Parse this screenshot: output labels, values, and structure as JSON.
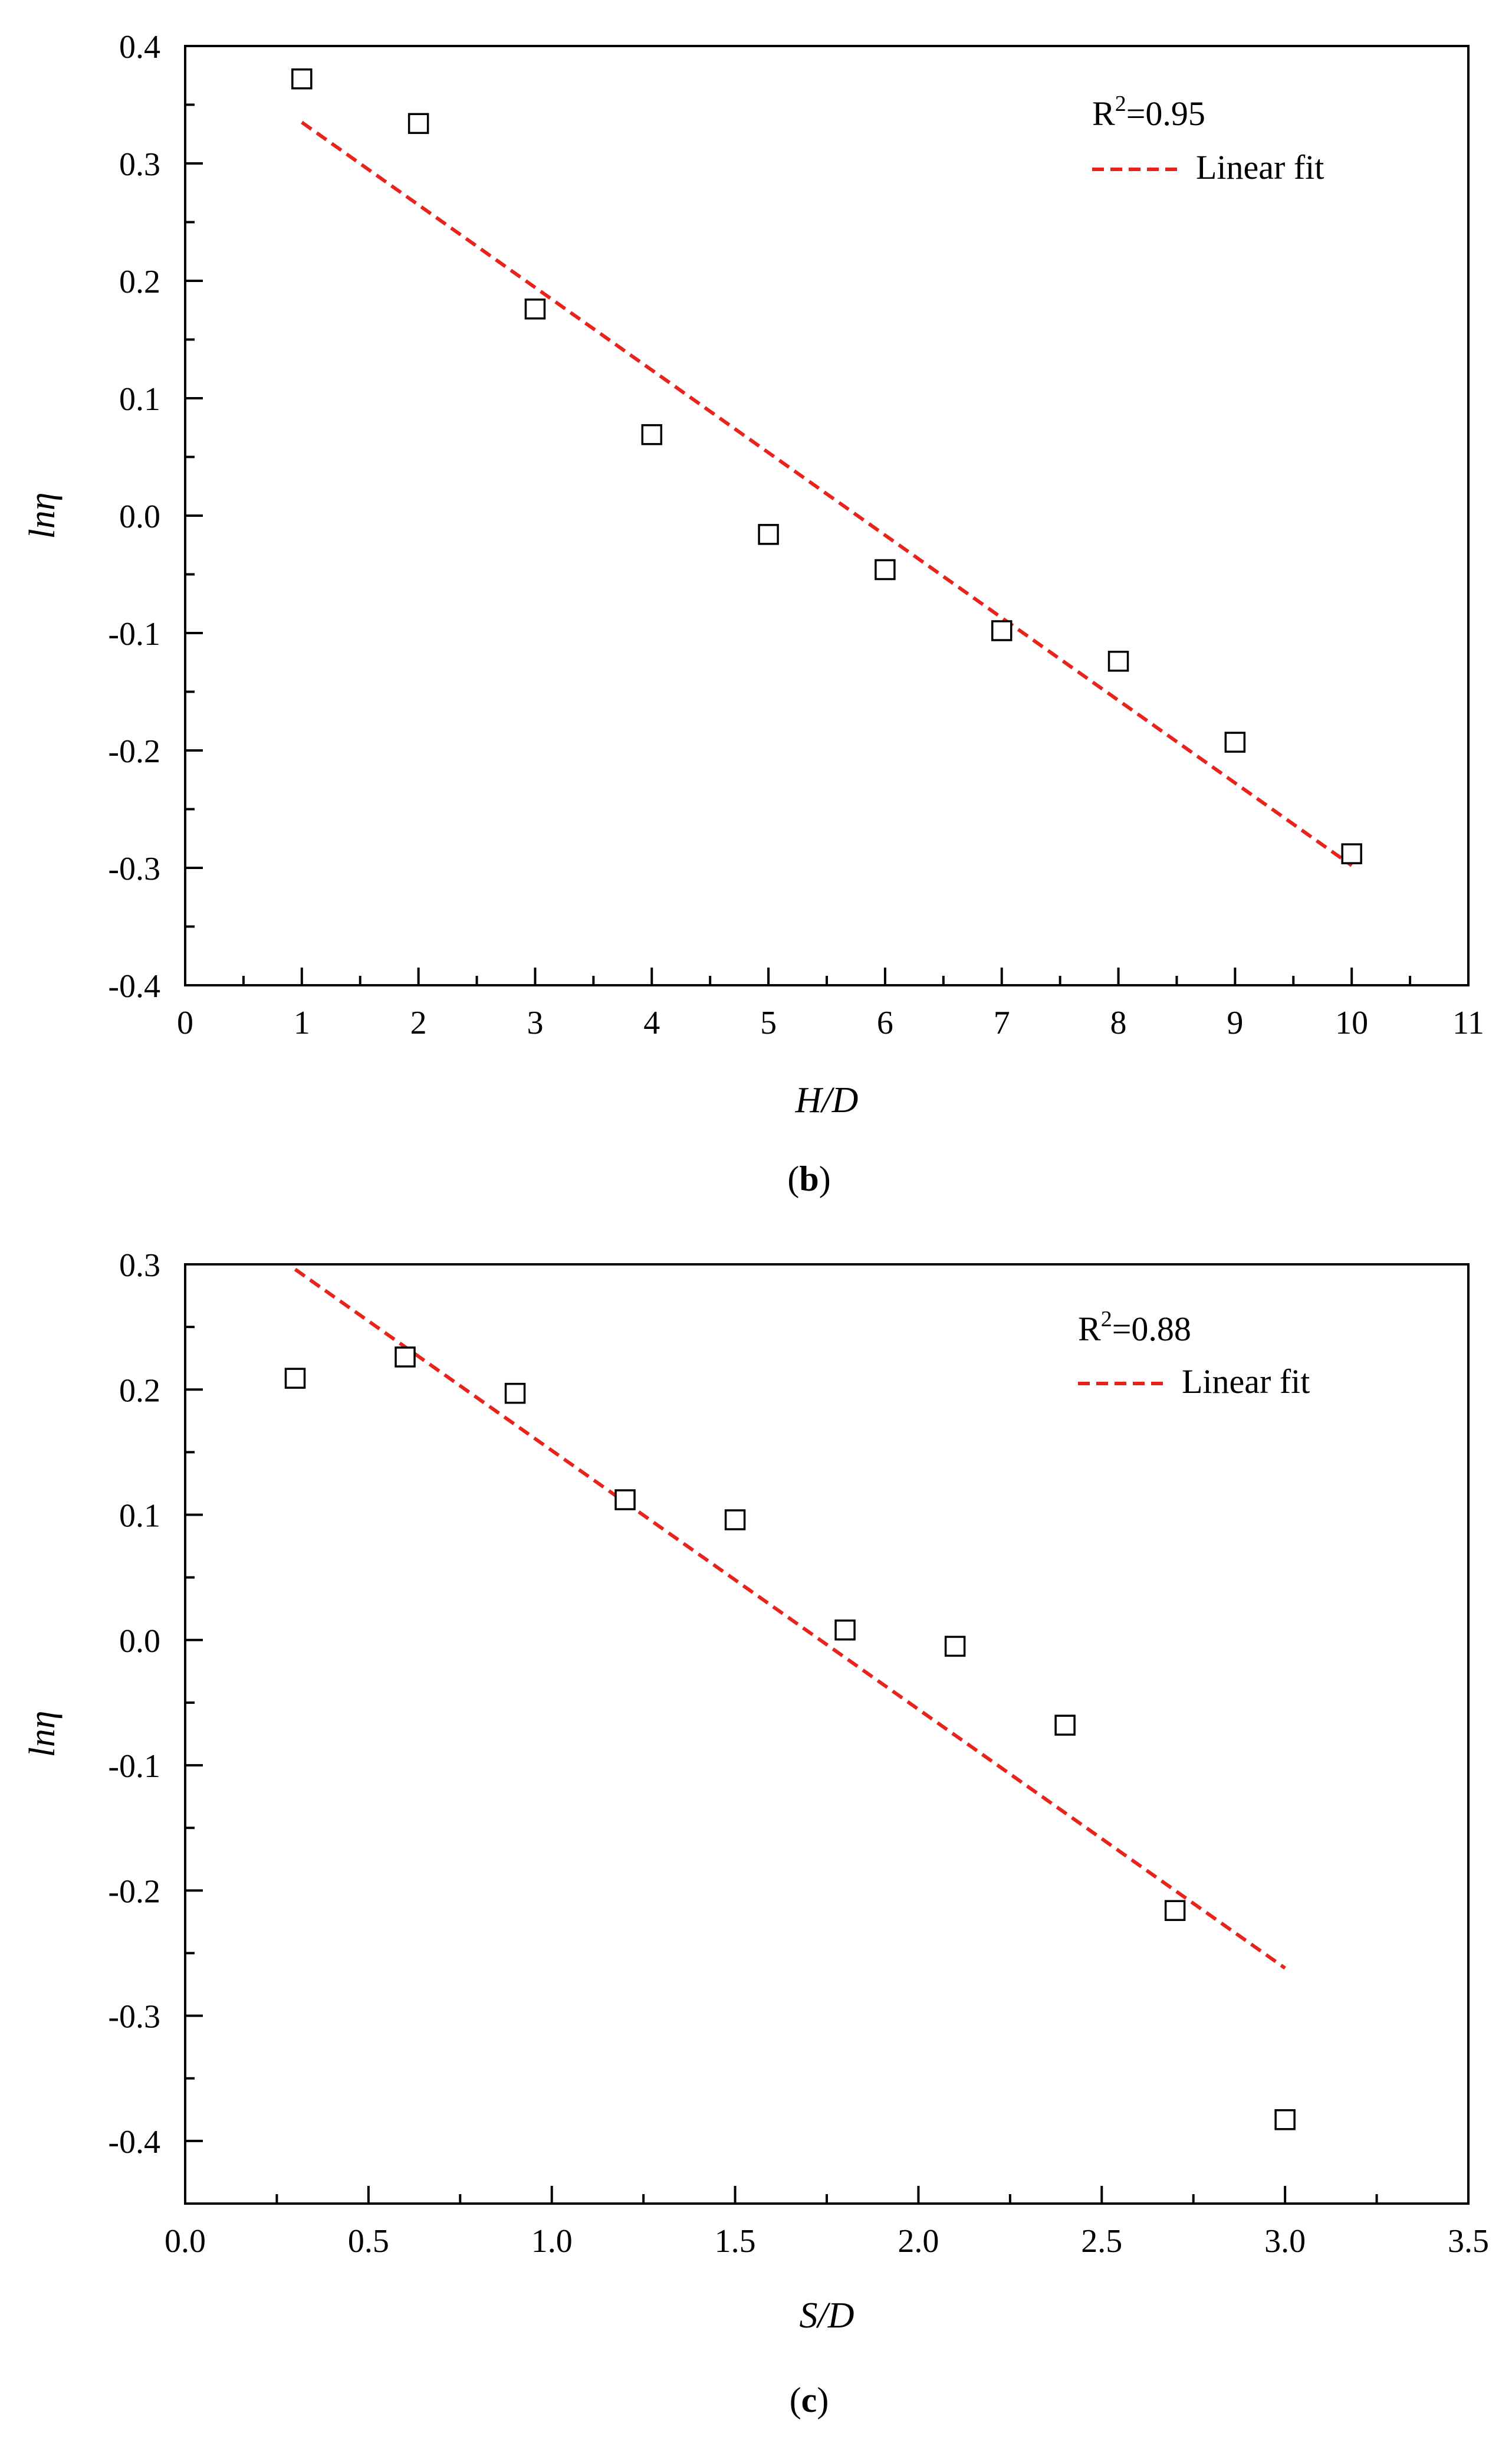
{
  "colors": {
    "fit_line": "#e8231c",
    "marker_stroke": "#000000",
    "axis": "#000000"
  },
  "chart_data": [
    {
      "type": "scatter",
      "panel_label_letter": "b",
      "title": "",
      "xlabel": "H/D",
      "ylabel": "lnη",
      "xlim": [
        0,
        11
      ],
      "ylim": [
        -0.4,
        0.4
      ],
      "xticks": [
        0,
        1,
        2,
        3,
        4,
        5,
        6,
        7,
        8,
        9,
        10,
        11
      ],
      "yticks": [
        -0.4,
        -0.3,
        -0.2,
        -0.1,
        0.0,
        0.1,
        0.2,
        0.3,
        0.4
      ],
      "xtick_labels": [
        "0",
        "1",
        "2",
        "3",
        "4",
        "5",
        "6",
        "7",
        "8",
        "9",
        "10",
        "11"
      ],
      "ytick_labels": [
        "-0.4",
        "-0.3",
        "-0.2",
        "-0.1",
        "0.0",
        "0.1",
        "0.2",
        "0.3",
        "0.4"
      ],
      "grid": false,
      "legend_position": "top-right",
      "r2_base": "R",
      "r2_sup": "2",
      "r2_value": "=0.95",
      "fit_label": "Linear fit",
      "series": [
        {
          "marker": "hollow-square",
          "x": [
            1,
            2,
            3,
            4,
            5,
            6,
            7,
            8,
            9,
            10
          ],
          "y": [
            0.372,
            0.334,
            0.176,
            0.069,
            -0.016,
            -0.046,
            -0.098,
            -0.124,
            -0.193,
            -0.288
          ]
        }
      ],
      "fit": {
        "x": [
          1,
          10
        ],
        "y": [
          0.335,
          -0.298
        ]
      }
    },
    {
      "type": "scatter",
      "panel_label_letter": "c",
      "title": "",
      "xlabel": "S/D",
      "ylabel": "lnη",
      "xlim": [
        0.0,
        3.5
      ],
      "ylim": [
        -0.45,
        0.3
      ],
      "xticks": [
        0.0,
        0.5,
        1.0,
        1.5,
        2.0,
        2.5,
        3.0,
        3.5
      ],
      "yticks": [
        -0.4,
        -0.3,
        -0.2,
        -0.1,
        0.0,
        0.1,
        0.2,
        0.3
      ],
      "xtick_labels": [
        "0.0",
        "0.5",
        "1.0",
        "1.5",
        "2.0",
        "2.5",
        "3.0",
        "3.5"
      ],
      "ytick_labels": [
        "-0.4",
        "-0.3",
        "-0.2",
        "-0.1",
        "0.0",
        "0.1",
        "0.2",
        "0.3"
      ],
      "grid": false,
      "legend_position": "top-right",
      "r2_base": "R",
      "r2_sup": "2",
      "r2_value": "=0.88",
      "fit_label": "Linear fit",
      "series": [
        {
          "marker": "hollow-square",
          "x": [
            0.3,
            0.6,
            0.9,
            1.2,
            1.5,
            1.8,
            2.1,
            2.4,
            2.7,
            3.0
          ],
          "y": [
            0.209,
            0.226,
            0.197,
            0.112,
            0.096,
            0.008,
            -0.005,
            -0.068,
            -0.216,
            -0.383
          ]
        }
      ],
      "fit": {
        "x": [
          0.3,
          3.0
        ],
        "y": [
          0.296,
          -0.262
        ]
      }
    }
  ]
}
